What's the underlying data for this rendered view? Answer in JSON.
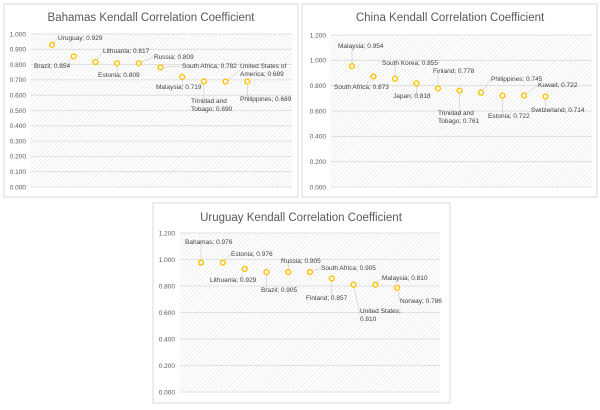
{
  "chart_data": [
    {
      "type": "scatter",
      "title": "Bahamas Kendall Correlation Coefficient",
      "ylim": [
        0,
        1.0
      ],
      "ytick_step": 0.1,
      "yticks": [
        "0.000",
        "0.100",
        "0.200",
        "0.300",
        "0.400",
        "0.500",
        "0.600",
        "0.700",
        "0.800",
        "0.900",
        "1.000"
      ],
      "grid": true,
      "marker_color": "#FFC000",
      "points": [
        {
          "name": "Uruguay",
          "value": 0.929,
          "label": [
            "Uruguay; 0.929"
          ]
        },
        {
          "name": "Brazil",
          "value": 0.854,
          "label": [
            "Brazil; 0.854"
          ]
        },
        {
          "name": "Lithuania",
          "value": 0.817,
          "label": [
            "Lithuania; 0.817"
          ]
        },
        {
          "name": "Estonia",
          "value": 0.809,
          "label": [
            "Estonia; 0.809"
          ]
        },
        {
          "name": "Russia",
          "value": 0.809,
          "label": [
            "Russia; 0.809"
          ]
        },
        {
          "name": "South Africa",
          "value": 0.782,
          "label": [
            "South Africa; 0.782"
          ]
        },
        {
          "name": "Malaysia",
          "value": 0.719,
          "label": [
            "Malaysia; 0.719"
          ]
        },
        {
          "name": "Trinidad and Tobago",
          "value": 0.69,
          "label": [
            "Trinidad and",
            "Tobago; 0.690"
          ]
        },
        {
          "name": "United States of America",
          "value": 0.689,
          "label": [
            "United States of",
            "America; 0.689"
          ]
        },
        {
          "name": "Philippines",
          "value": 0.689,
          "label": [
            "Philippines; 0.689"
          ]
        }
      ]
    },
    {
      "type": "scatter",
      "title": "China Kendall Correlation Coefficient",
      "ylim": [
        0,
        1.2
      ],
      "ytick_step": 0.2,
      "yticks": [
        "0.000",
        "0.200",
        "0.400",
        "0.600",
        "0.800",
        "1.000",
        "1.200"
      ],
      "grid": true,
      "marker_color": "#FFC000",
      "points": [
        {
          "name": "Malaysia",
          "value": 0.954,
          "label": [
            "Malaysia; 0.954"
          ]
        },
        {
          "name": "South Africa",
          "value": 0.873,
          "label": [
            "South Africa; 0.873"
          ]
        },
        {
          "name": "South Korea",
          "value": 0.855,
          "label": [
            "South Korea; 0.855"
          ]
        },
        {
          "name": "Japan",
          "value": 0.818,
          "label": [
            "Japan; 0.818"
          ]
        },
        {
          "name": "Finland",
          "value": 0.778,
          "label": [
            "Finland; 0.778"
          ]
        },
        {
          "name": "Trinidad and Tobago",
          "value": 0.761,
          "label": [
            "Trinidad and",
            "Tobago; 0.761"
          ]
        },
        {
          "name": "Philippines",
          "value": 0.745,
          "label": [
            "Philippines; 0.745"
          ]
        },
        {
          "name": "Estonia",
          "value": 0.722,
          "label": [
            "Estonia; 0.722"
          ]
        },
        {
          "name": "Kuwait",
          "value": 0.722,
          "label": [
            "Kuwait; 0.722"
          ]
        },
        {
          "name": "Switzerland",
          "value": 0.714,
          "label": [
            "Switzerland; 0.714"
          ]
        }
      ]
    },
    {
      "type": "scatter",
      "title": "Uruguay Kendall Correlation Coefficient",
      "ylim": [
        0,
        1.2
      ],
      "ytick_step": 0.2,
      "yticks": [
        "0.000",
        "0.200",
        "0.400",
        "0.600",
        "0.800",
        "1.000",
        "1.200"
      ],
      "grid": true,
      "marker_color": "#FFC000",
      "points": [
        {
          "name": "Bahamas",
          "value": 0.976,
          "label": [
            "Bahamas; 0.976"
          ]
        },
        {
          "name": "Estonia",
          "value": 0.976,
          "label": [
            "Estonia; 0.976"
          ]
        },
        {
          "name": "Lithuania",
          "value": 0.929,
          "label": [
            "Lithuania; 0.929"
          ]
        },
        {
          "name": "Brazil",
          "value": 0.905,
          "label": [
            "Brazil; 0.905"
          ]
        },
        {
          "name": "Russia",
          "value": 0.905,
          "label": [
            "Russia; 0.905"
          ]
        },
        {
          "name": "South Africa",
          "value": 0.905,
          "label": [
            "South Africa; 0.905"
          ]
        },
        {
          "name": "Finland",
          "value": 0.857,
          "label": [
            "Finland; 0.857"
          ]
        },
        {
          "name": "United States",
          "value": 0.81,
          "label": [
            "United States;",
            "0.810"
          ]
        },
        {
          "name": "Malaysia",
          "value": 0.81,
          "label": [
            "Malaysia; 0.810"
          ]
        },
        {
          "name": "Norway",
          "value": 0.786,
          "label": [
            "Norway; 0.786"
          ]
        }
      ]
    }
  ]
}
